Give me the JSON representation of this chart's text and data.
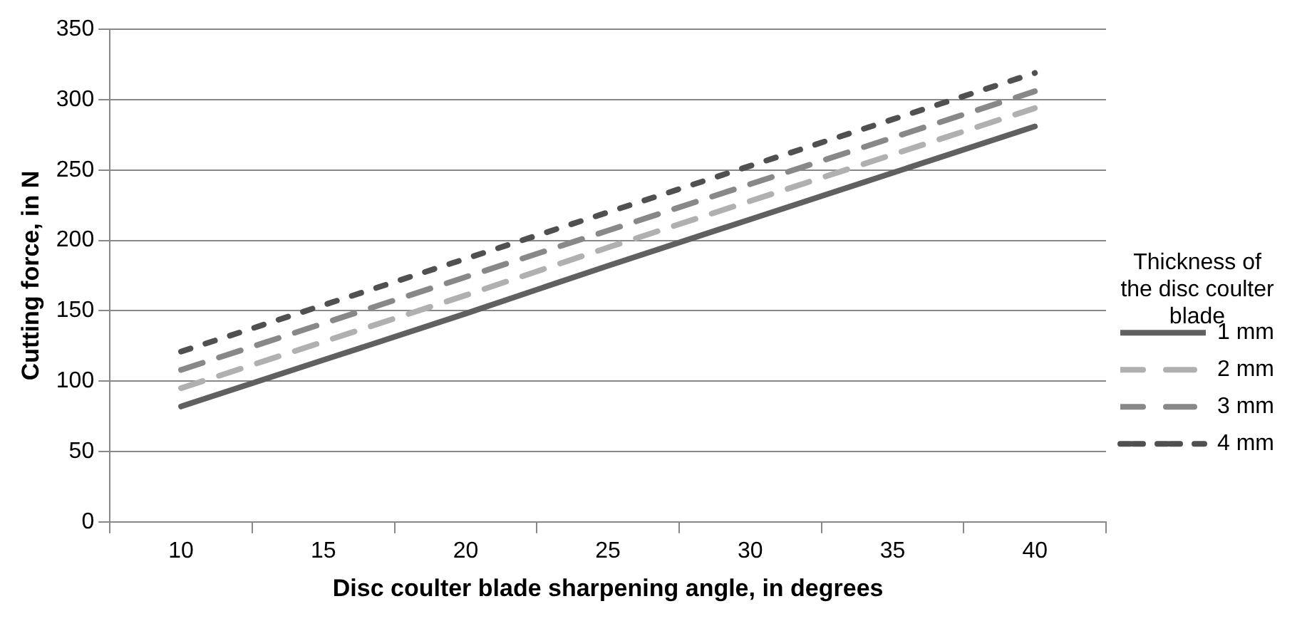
{
  "chart_data": {
    "type": "line",
    "xlabel": "Disc coulter blade sharpening angle, in degrees",
    "ylabel": "Cutting force, in N",
    "legend_title": "Thickness of the disc coulter blade",
    "categories": [
      "10",
      "15",
      "20",
      "25",
      "30",
      "35",
      "40"
    ],
    "series": [
      {
        "name": "1 mm",
        "color": "#606060",
        "line_style": "solid",
        "values": [
          82,
          115,
          148,
          182,
          215,
          248,
          281
        ]
      },
      {
        "name": "2 mm",
        "color": "#b0b0b0",
        "line_style": "dashed",
        "values": [
          95,
          128,
          161,
          195,
          228,
          261,
          294
        ]
      },
      {
        "name": "3 mm",
        "color": "#888888",
        "line_style": "dashed",
        "values": [
          108,
          141,
          174,
          207,
          240,
          273,
          306
        ]
      },
      {
        "name": "4 mm",
        "color": "#505050",
        "line_style": "dotted",
        "values": [
          121,
          154,
          187,
          220,
          253,
          286,
          319
        ]
      }
    ],
    "ylim": [
      0,
      350
    ],
    "yticks": [
      0,
      50,
      100,
      150,
      200,
      250,
      300,
      350
    ],
    "grid": "y",
    "legend": "right",
    "marker": "none"
  }
}
